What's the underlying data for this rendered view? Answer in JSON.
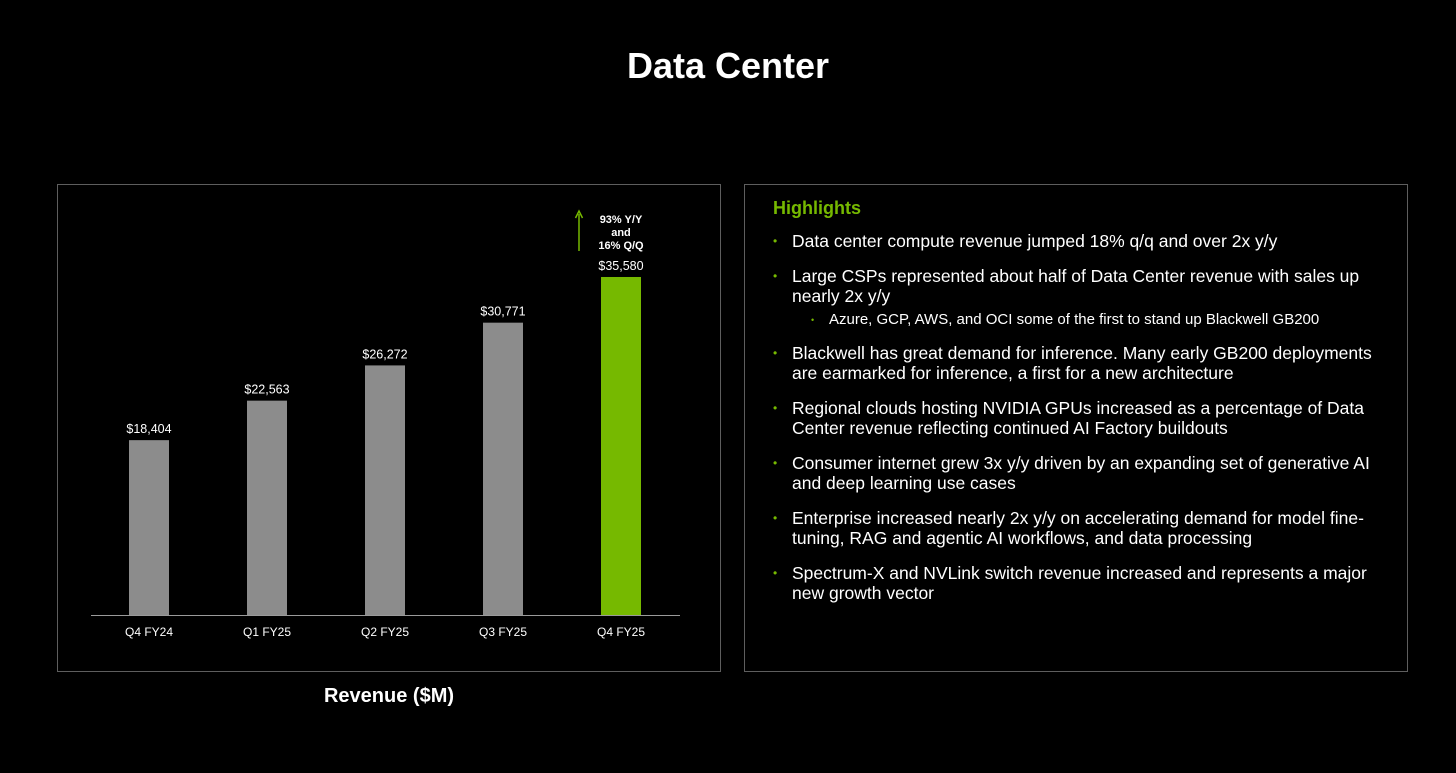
{
  "page": {
    "title": "Data Center",
    "accent_color": "#76b900",
    "bar_color": "#8c8c8c",
    "background": "#000000"
  },
  "chart_data": {
    "type": "bar",
    "categories": [
      "Q4 FY24",
      "Q1 FY25",
      "Q2 FY25",
      "Q3 FY25",
      "Q4 FY25"
    ],
    "values": [
      18404,
      22563,
      26272,
      30771,
      35580
    ],
    "value_labels": [
      "$18,404",
      "$22,563",
      "$26,272",
      "$30,771",
      "$35,580"
    ],
    "highlight_index": 4,
    "title": "",
    "xlabel": "Revenue ($M)",
    "ylabel": "",
    "ylim": [
      0,
      40000
    ],
    "grid": false,
    "annotation": {
      "lines": [
        "93% Y/Y",
        "and",
        "16% Q/Q"
      ],
      "arrow": "up-arrow"
    }
  },
  "highlights": {
    "title": "Highlights",
    "items": [
      {
        "text": "Data center compute revenue jumped 18% q/q and over 2x y/y"
      },
      {
        "text": "Large CSPs represented about half of Data Center revenue with sales up nearly 2x y/y",
        "sub": "Azure, GCP, AWS, and OCI some of the first to stand up Blackwell GB200"
      },
      {
        "text": "Blackwell has great demand for inference. Many early GB200 deployments are earmarked for inference, a first for a new architecture"
      },
      {
        "text": "Regional clouds hosting NVIDIA GPUs increased as a percentage of Data Center revenue reflecting continued AI Factory buildouts"
      },
      {
        "text": "Consumer internet grew 3x y/y driven by an expanding set of generative AI and deep learning use cases"
      },
      {
        "text": "Enterprise increased nearly 2x y/y on accelerating demand for model fine-tuning, RAG and agentic AI workflows, and data processing"
      },
      {
        "text": "Spectrum-X and NVLink switch revenue increased and represents a major new growth vector"
      }
    ]
  }
}
